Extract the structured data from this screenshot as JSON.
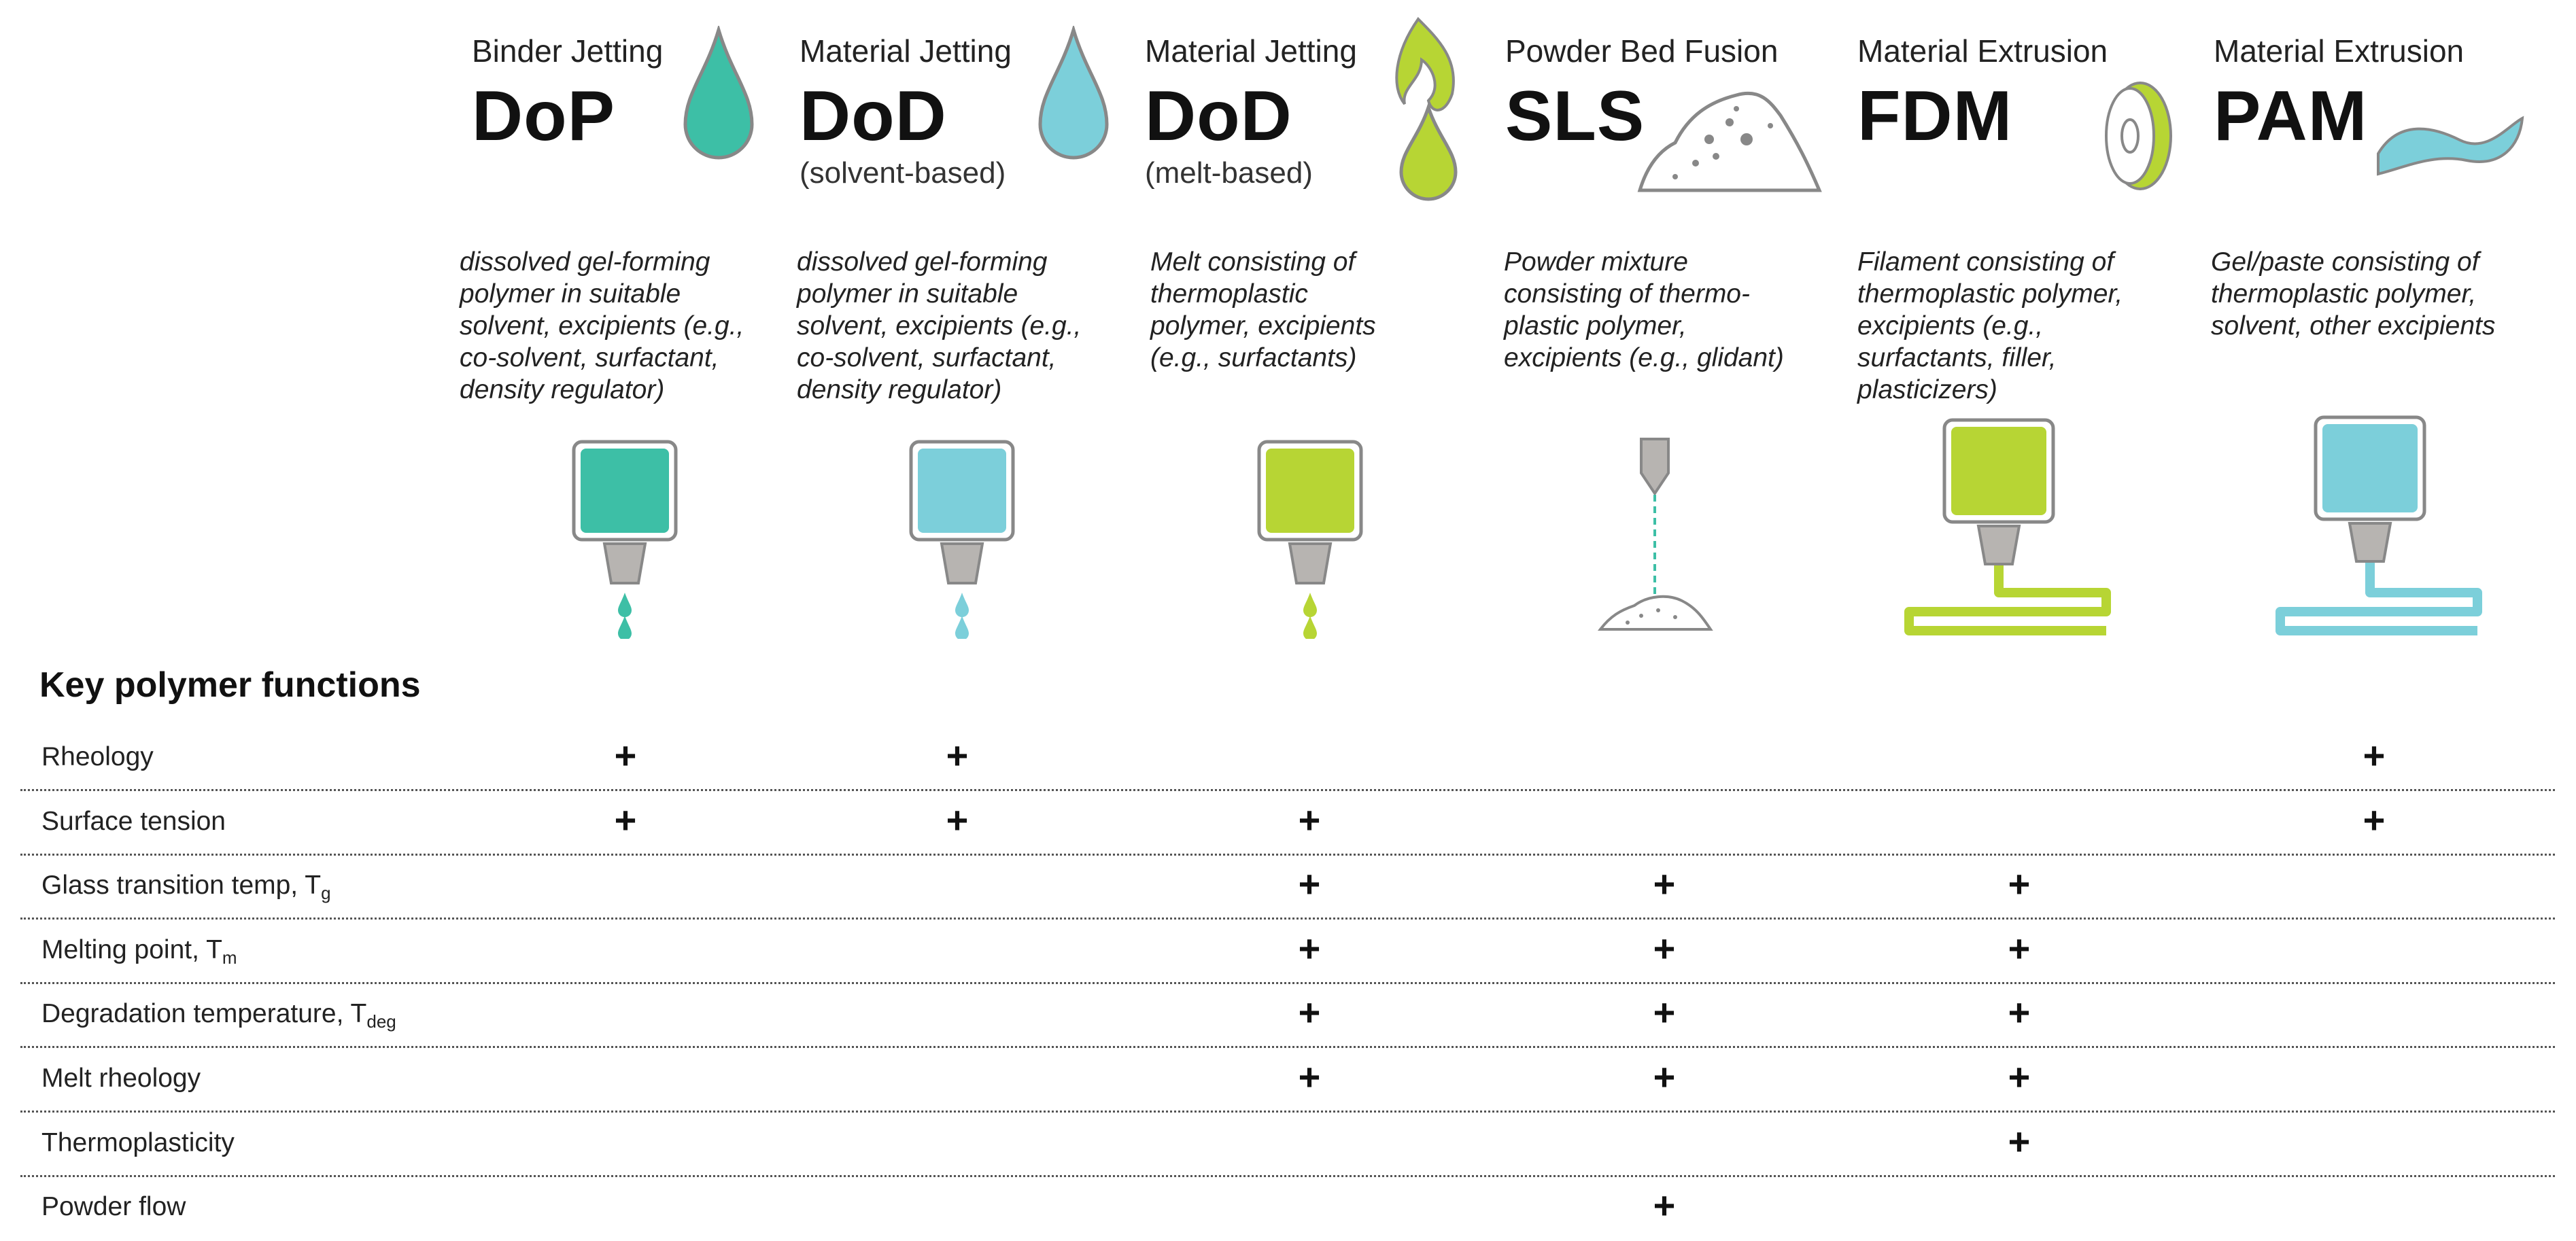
{
  "columns": [
    {
      "category": "Binder Jetting",
      "abbr": "DoP",
      "subtitle": "",
      "description": "dissolved gel-forming\npolymer in suitable\nsolvent, excipients (e.g.,\nco-solvent, surfactant,\ndensity regulator)",
      "color": "#3dbfa6"
    },
    {
      "category": "Material Jetting",
      "abbr": "DoD",
      "subtitle": "(solvent-based)",
      "description": "dissolved gel-forming\npolymer in suitable\nsolvent, excipients (e.g.,\nco-solvent, surfactant,\ndensity regulator)",
      "color": "#7ccfda"
    },
    {
      "category": "Material Jetting",
      "abbr": "DoD",
      "subtitle": "(melt-based)",
      "description": "Melt consisting of\nthermoplastic\npolymer, excipients\n(e.g., surfactants)",
      "color": "#b7d534"
    },
    {
      "category": "Powder Bed Fusion",
      "abbr": "SLS",
      "subtitle": "",
      "description": "Powder mixture\nconsisting of thermo-\nplastic polymer,\nexcipients (e.g., glidant)",
      "color": "#b3b0ad"
    },
    {
      "category": "Material Extrusion",
      "abbr": "FDM",
      "subtitle": "",
      "description": "Filament consisting of\nthermoplastic polymer,\nexcipients (e.g.,\nsurfactants, filler,\nplasticizers)",
      "color": "#b7d534"
    },
    {
      "category": "Material Extrusion",
      "abbr": "PAM",
      "subtitle": "",
      "description": "Gel/paste consisting of\nthermoplastic polymer,\nsolvent, other excipients",
      "color": "#7ccfda"
    }
  ],
  "section_title": "Key polymer functions",
  "plus_symbol": "+",
  "rows": [
    {
      "label": "Rheology",
      "label_sub": "",
      "marks": [
        true,
        true,
        false,
        false,
        false,
        true
      ]
    },
    {
      "label": "Surface tension",
      "label_sub": "",
      "marks": [
        true,
        true,
        true,
        false,
        false,
        true
      ]
    },
    {
      "label": "Glass transition temp, T",
      "label_sub": "g",
      "marks": [
        false,
        false,
        true,
        true,
        true,
        false
      ]
    },
    {
      "label": "Melting point, T",
      "label_sub": "m",
      "marks": [
        false,
        false,
        true,
        true,
        true,
        false
      ]
    },
    {
      "label": "Degradation temperature, T",
      "label_sub": "deg",
      "marks": [
        false,
        false,
        true,
        true,
        true,
        false
      ]
    },
    {
      "label": "Melt rheology",
      "label_sub": "",
      "marks": [
        false,
        false,
        true,
        true,
        true,
        false
      ]
    },
    {
      "label": "Thermoplasticity",
      "label_sub": "",
      "marks": [
        false,
        false,
        false,
        false,
        true,
        false
      ]
    },
    {
      "label": "Powder flow",
      "label_sub": "",
      "marks": [
        false,
        false,
        false,
        true,
        false,
        false
      ]
    }
  ]
}
